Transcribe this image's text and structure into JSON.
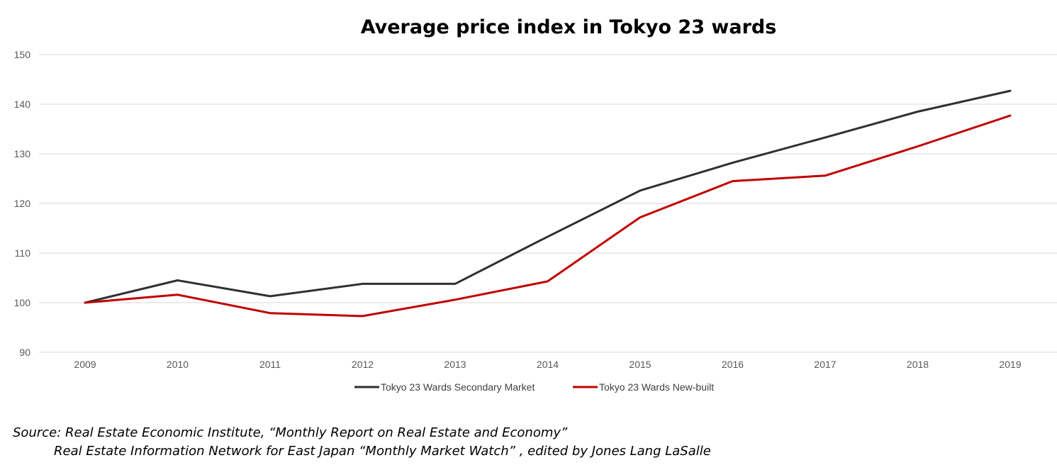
{
  "chart_data": {
    "type": "line",
    "title": "Average price index in Tokyo 23 wards",
    "xlabel": "",
    "ylabel": "",
    "categories": [
      "2009",
      "2010",
      "2011",
      "2012",
      "2013",
      "2014",
      "2015",
      "2016",
      "2017",
      "2018",
      "2019"
    ],
    "ylim": [
      90,
      150
    ],
    "yticks": [
      90,
      100,
      110,
      120,
      130,
      140,
      150
    ],
    "grid": true,
    "legend_position": "bottom",
    "series": [
      {
        "name": "Tokyo 23 Wards Secondary Market",
        "color": "#303030",
        "values": [
          100.0,
          104.5,
          101.3,
          103.8,
          103.8,
          113.3,
          122.6,
          128.2,
          133.3,
          138.5,
          142.7
        ]
      },
      {
        "name": "Tokyo 23 Wards New-built",
        "color": "#c00000",
        "values": [
          100.0,
          101.6,
          97.9,
          97.3,
          100.6,
          104.3,
          117.2,
          124.5,
          125.6,
          131.5,
          137.7
        ]
      }
    ]
  },
  "source": {
    "line1": "Source: Real Estate Economic Institute, “Monthly Report on Real Estate and Economy”",
    "line2": "Real Estate Information Network for East Japan “Monthly Market Watch” , edited by Jones Lang LaSalle"
  }
}
